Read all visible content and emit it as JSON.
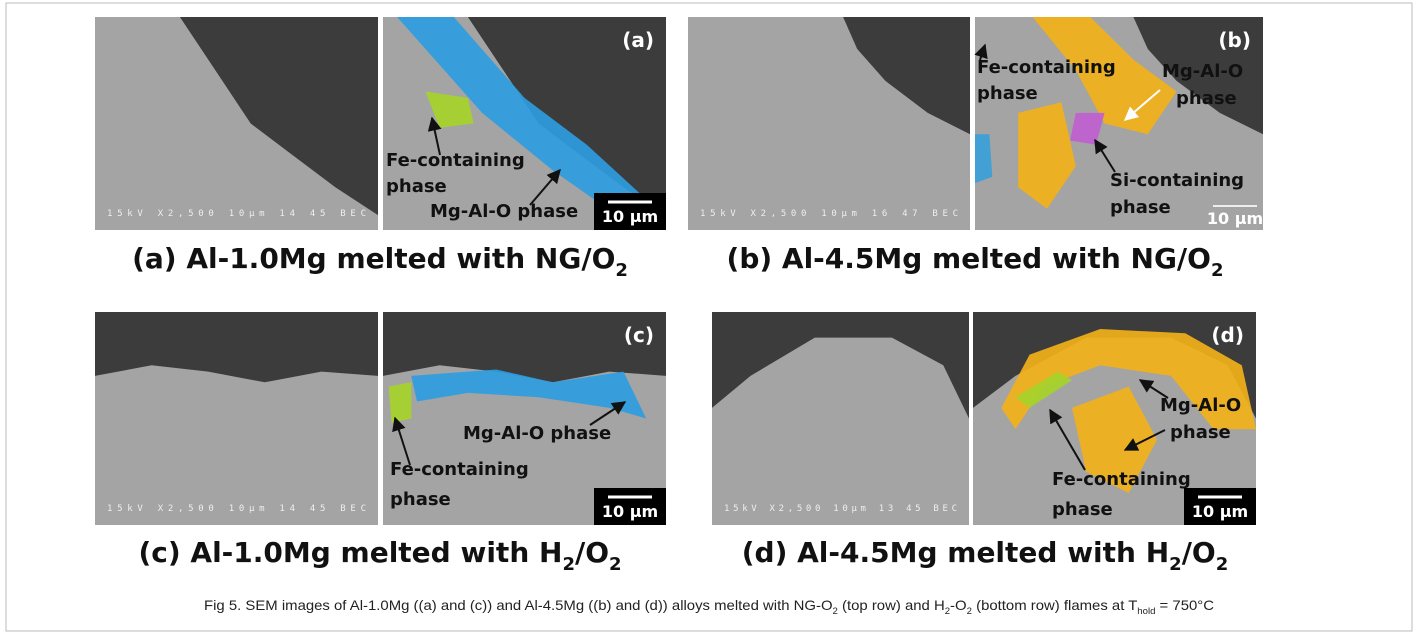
{
  "figure": {
    "panels": [
      {
        "label": "(a)",
        "sem_footer": "15kV X2,500 10μm 14 45 BEC",
        "annotations": [
          "Fe-containing",
          "phase",
          "Mg-Al-O phase"
        ],
        "scale_bar": "10 μm",
        "caption": [
          "(a) Al-1.0Mg melted with NG/O",
          "2"
        ]
      },
      {
        "label": "(b)",
        "sem_footer": "15kV X2,500 10μm 16 47 BEC",
        "annotations": [
          "Fe-containing",
          "phase",
          "Mg-Al-O",
          "phase",
          "Si-containing",
          "phase"
        ],
        "scale_bar": "10 μm",
        "caption": [
          "(b) Al-4.5Mg melted with NG/O",
          "2"
        ]
      },
      {
        "label": "(c)",
        "sem_footer": "15kV X2,500 10μm 14 45 BEC",
        "annotations": [
          "Mg-Al-O phase",
          "Fe-containing",
          "phase"
        ],
        "scale_bar": "10 μm",
        "caption": [
          "(c) Al-1.0Mg melted with H",
          "2",
          "/O",
          "2"
        ]
      },
      {
        "label": "(d)",
        "sem_footer": "15kV X2,500 10μm 13 45 BEC",
        "annotations": [
          "Mg-Al-O",
          "phase",
          "Fe-containing",
          "phase"
        ],
        "scale_bar": "10 μm",
        "caption": [
          "(d) Al-4.5Mg melted with H",
          "2",
          "/O",
          "2"
        ]
      }
    ],
    "caption": [
      "Fig 5. SEM images of Al-1.0Mg ((a) and (c)) and Al-4.5Mg ((b) and (d)) alloys melted with NG-O",
      "2",
      " (top row) and H",
      "2",
      "-O",
      "2",
      " (bottom row) flames at T",
      "hold",
      " = 750°C"
    ]
  }
}
